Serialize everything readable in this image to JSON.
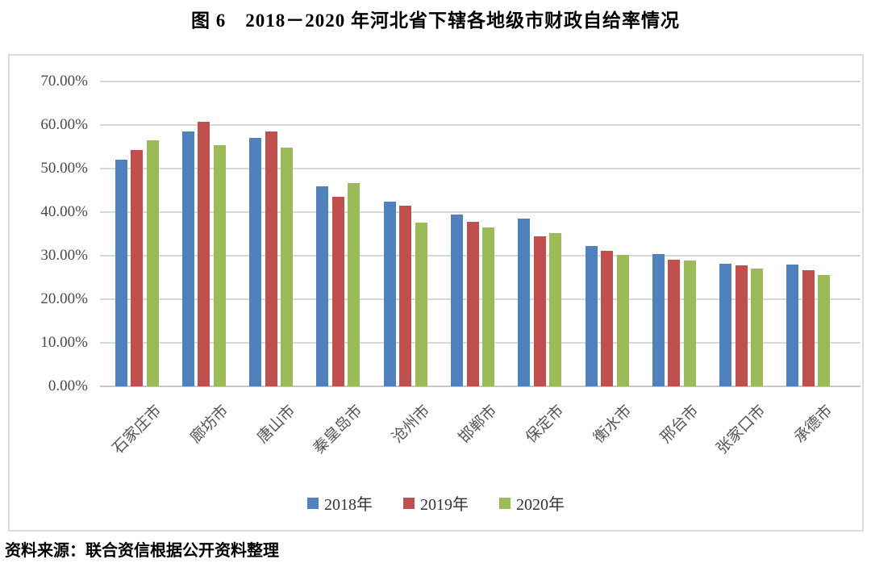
{
  "header": {
    "title": "图 6　2018－2020 年河北省下辖各地级市财政自给率情况"
  },
  "source_note": "资料来源：联合资信根据公开资料整理",
  "colors": {
    "series_2018": "#4F81BD",
    "series_2019": "#C0504D",
    "series_2020": "#9BBB59",
    "gridline": "#D9D9D9",
    "axis_line": "#C6C6C6",
    "tick_text": "#4A4A4A",
    "chart_border": "#DCDCDC"
  },
  "chart_data": {
    "type": "bar",
    "title": "图 6　2018－2020 年河北省下辖各地级市财政自给率情况",
    "xlabel": "",
    "ylabel": "",
    "ylim": [
      0,
      70
    ],
    "grid": true,
    "legend_position": "bottom",
    "categories": [
      "石家庄市",
      "廊坊市",
      "唐山市",
      "秦皇岛市",
      "沧州市",
      "邯郸市",
      "保定市",
      "衡水市",
      "邢台市",
      "张家口市",
      "承德市"
    ],
    "series": [
      {
        "name": "2018年",
        "color": "#4F81BD",
        "values": [
          52.1,
          58.5,
          57.1,
          46.0,
          42.4,
          39.4,
          38.5,
          32.2,
          30.4,
          28.1,
          27.9
        ]
      },
      {
        "name": "2019年",
        "color": "#C0504D",
        "values": [
          54.2,
          60.8,
          58.5,
          43.6,
          41.4,
          37.8,
          34.4,
          31.1,
          29.1,
          27.7,
          26.6
        ]
      },
      {
        "name": "2020年",
        "color": "#9BBB59",
        "values": [
          56.4,
          55.3,
          54.9,
          46.7,
          37.6,
          36.5,
          35.1,
          30.2,
          28.9,
          27.1,
          25.5
        ]
      }
    ],
    "yticks": [
      {
        "value": 0,
        "label": "0.00%"
      },
      {
        "value": 10,
        "label": "10.00%"
      },
      {
        "value": 20,
        "label": "20.00%"
      },
      {
        "value": 30,
        "label": "30.00%"
      },
      {
        "value": 40,
        "label": "40.00%"
      },
      {
        "value": 50,
        "label": "50.00%"
      },
      {
        "value": 60,
        "label": "60.00%"
      },
      {
        "value": 70,
        "label": "70.00%"
      }
    ],
    "source": "资料来源：联合资信根据公开资料整理"
  }
}
